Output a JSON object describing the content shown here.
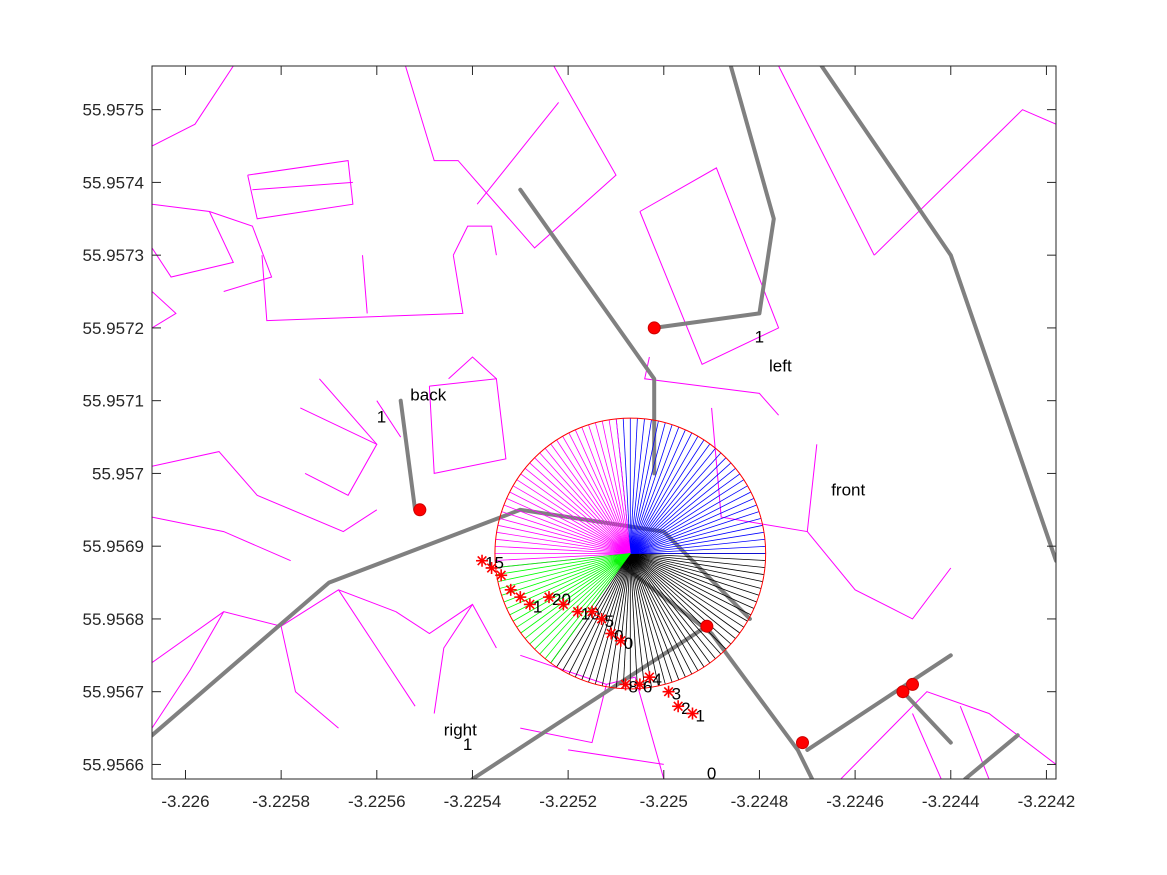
{
  "chart_data": {
    "type": "scatter",
    "title": "",
    "xlabel": "",
    "ylabel": "",
    "xlim": [
      -3.22607,
      -3.22418
    ],
    "ylim": [
      55.95658,
      55.95756
    ],
    "xticks": [
      -3.226,
      -3.2258,
      -3.2256,
      -3.2254,
      -3.2252,
      -3.225,
      -3.2248,
      -3.2246,
      -3.2244,
      -3.2242
    ],
    "xtick_labels": [
      "-3.226",
      "-3.2258",
      "-3.2256",
      "-3.2254",
      "-3.2252",
      "-3.225",
      "-3.2248",
      "-3.2246",
      "-3.2244",
      "-3.2242"
    ],
    "yticks": [
      55.9566,
      55.9567,
      55.9568,
      55.9569,
      55.957,
      55.9571,
      55.9572,
      55.9573,
      55.9574,
      55.9575
    ],
    "ytick_labels": [
      "55.9566",
      "55.9567",
      "55.9568",
      "55.9569",
      "55.957",
      "55.9571",
      "55.9572",
      "55.9573",
      "55.9574",
      "55.9575"
    ],
    "grid": false,
    "center": [
      -3.22507,
      55.95689
    ],
    "radius": 0.000283,
    "ray_count": 120,
    "sectors": [
      {
        "name": "front",
        "color": "#000000",
        "from_deg": -126,
        "to_deg": 0
      },
      {
        "name": "left",
        "color": "#0000ff",
        "from_deg": 0,
        "to_deg": 96
      },
      {
        "name": "back",
        "color": "#ff00ff",
        "from_deg": 96,
        "to_deg": 186
      },
      {
        "name": "right",
        "color": "#00ff00",
        "from_deg": 186,
        "to_deg": 234
      }
    ],
    "colors": {
      "circle": "#ff0000",
      "roads": "#808080",
      "buildings": "#ff00ff",
      "markers": "#ff0000"
    },
    "annotations": [
      {
        "text": "front",
        "x": -3.22465,
        "y": 55.95697
      },
      {
        "text": "left",
        "x": -3.22478,
        "y": 55.95714
      },
      {
        "text": "1",
        "x": -3.22481,
        "y": 55.95718
      },
      {
        "text": "back",
        "x": -3.22553,
        "y": 55.9571
      },
      {
        "text": "1",
        "x": -3.2256,
        "y": 55.95707
      },
      {
        "text": "right",
        "x": -3.22546,
        "y": 55.95664
      },
      {
        "text": "1",
        "x": -3.22542,
        "y": 55.95662
      },
      {
        "text": "0",
        "x": -3.22491,
        "y": 55.95658
      }
    ],
    "road_nodes": [
      {
        "x": -3.22502,
        "y": 55.9572
      },
      {
        "x": -3.22551,
        "y": 55.95695
      },
      {
        "x": -3.22491,
        "y": 55.95679
      },
      {
        "x": -3.22471,
        "y": 55.95663
      },
      {
        "x": -3.2245,
        "y": 55.9567
      },
      {
        "x": -3.22448,
        "y": 55.95671
      }
    ],
    "samples_a": [
      {
        "x": -3.22538,
        "y": 55.95688,
        "label": "15"
      },
      {
        "x": -3.22536,
        "y": 55.95687,
        "label": ""
      },
      {
        "x": -3.22534,
        "y": 55.95686,
        "label": ""
      },
      {
        "x": -3.22532,
        "y": 55.95684,
        "label": ""
      },
      {
        "x": -3.2253,
        "y": 55.95683,
        "label": ""
      },
      {
        "x": -3.22528,
        "y": 55.95682,
        "label": "1"
      }
    ],
    "samples_b": [
      {
        "x": -3.22524,
        "y": 55.95683,
        "label": "20"
      },
      {
        "x": -3.22521,
        "y": 55.95682,
        "label": ""
      },
      {
        "x": -3.22518,
        "y": 55.95681,
        "label": "10"
      },
      {
        "x": -3.22515,
        "y": 55.95681,
        "label": ""
      },
      {
        "x": -3.22513,
        "y": 55.9568,
        "label": "5"
      },
      {
        "x": -3.22511,
        "y": 55.95678,
        "label": "0"
      },
      {
        "x": -3.22509,
        "y": 55.95677,
        "label": "0"
      }
    ],
    "samples_c": [
      {
        "x": -3.22508,
        "y": 55.95671,
        "label": "8"
      },
      {
        "x": -3.22505,
        "y": 55.95671,
        "label": "6"
      },
      {
        "x": -3.22503,
        "y": 55.95672,
        "label": "4"
      },
      {
        "x": -3.22499,
        "y": 55.9567,
        "label": "3"
      },
      {
        "x": -3.22497,
        "y": 55.95668,
        "label": "2"
      },
      {
        "x": -3.22494,
        "y": 55.95667,
        "label": "1"
      }
    ],
    "roads": [
      [
        [
          -3.22607,
          55.95664
        ],
        [
          -3.2257,
          55.95685
        ],
        [
          -3.2253,
          55.95695
        ],
        [
          -3.225,
          55.95692
        ],
        [
          -3.22482,
          55.9568
        ]
      ],
      [
        [
          -3.22555,
          55.9571
        ],
        [
          -3.22552,
          55.95695
        ]
      ],
      [
        [
          -3.2253,
          55.95739
        ],
        [
          -3.22502,
          55.95713
        ],
        [
          -3.22502,
          55.957
        ]
      ],
      [
        [
          -3.22502,
          55.9572
        ],
        [
          -3.2248,
          55.95722
        ],
        [
          -3.22477,
          55.95735
        ],
        [
          -3.22486,
          55.95756
        ]
      ],
      [
        [
          -3.22467,
          55.95756
        ],
        [
          -3.2244,
          55.9573
        ],
        [
          -3.22418,
          55.95688
        ]
      ],
      [
        [
          -3.2251,
          55.95688
        ],
        [
          -3.2249,
          55.95678
        ],
        [
          -3.22472,
          55.95662
        ],
        [
          -3.22469,
          55.95658
        ]
      ],
      [
        [
          -3.2247,
          55.95662
        ],
        [
          -3.2244,
          55.95675
        ]
      ],
      [
        [
          -3.2245,
          55.9567
        ],
        [
          -3.2244,
          55.95663
        ]
      ],
      [
        [
          -3.2254,
          55.95658
        ],
        [
          -3.22491,
          55.95679
        ]
      ],
      [
        [
          -3.22426,
          55.95664
        ],
        [
          -3.22437,
          55.95658
        ]
      ]
    ],
    "buildings": [
      [
        [
          -3.22607,
          55.95745
        ],
        [
          -3.22598,
          55.95748
        ],
        [
          -3.2259,
          55.95756
        ]
      ],
      [
        [
          -3.22587,
          55.95741
        ],
        [
          -3.22566,
          55.95743
        ],
        [
          -3.22565,
          55.95737
        ],
        [
          -3.22585,
          55.95735
        ],
        [
          -3.22587,
          55.95741
        ]
      ],
      [
        [
          -3.22586,
          55.95739
        ],
        [
          -3.22565,
          55.9574
        ]
      ],
      [
        [
          -3.22607,
          55.95737
        ],
        [
          -3.22595,
          55.95736
        ],
        [
          -3.2259,
          55.95729
        ],
        [
          -3.22603,
          55.95727
        ],
        [
          -3.22607,
          55.95731
        ]
      ],
      [
        [
          -3.22595,
          55.95736
        ],
        [
          -3.22586,
          55.95734
        ],
        [
          -3.22582,
          55.95727
        ],
        [
          -3.22592,
          55.95725
        ]
      ],
      [
        [
          -3.22607,
          55.95725
        ],
        [
          -3.22602,
          55.95722
        ],
        [
          -3.22607,
          55.9572
        ]
      ],
      [
        [
          -3.22554,
          55.95756
        ],
        [
          -3.22548,
          55.95743
        ],
        [
          -3.22543,
          55.95743
        ],
        [
          -3.22527,
          55.95731
        ],
        [
          -3.2251,
          55.95741
        ],
        [
          -3.22523,
          55.95756
        ]
      ],
      [
        [
          -3.22539,
          55.95737
        ],
        [
          -3.22522,
          55.95751
        ]
      ],
      [
        [
          -3.22584,
          55.9573
        ],
        [
          -3.22583,
          55.95721
        ],
        [
          -3.22542,
          55.95722
        ],
        [
          -3.22544,
          55.9573
        ]
      ],
      [
        [
          -3.22563,
          55.9573
        ],
        [
          -3.22562,
          55.95722
        ]
      ],
      [
        [
          -3.22544,
          55.9573
        ],
        [
          -3.22541,
          55.95734
        ],
        [
          -3.22536,
          55.95734
        ],
        [
          -3.22535,
          55.9573
        ]
      ],
      [
        [
          -3.22576,
          55.95709
        ],
        [
          -3.2256,
          55.95704
        ],
        [
          -3.22566,
          55.95697
        ],
        [
          -3.22575,
          55.957
        ]
      ],
      [
        [
          -3.22572,
          55.95713
        ],
        [
          -3.2256,
          55.95704
        ]
      ],
      [
        [
          -3.22607,
          55.95701
        ],
        [
          -3.22593,
          55.95703
        ],
        [
          -3.22585,
          55.95697
        ],
        [
          -3.22567,
          55.95692
        ],
        [
          -3.2256,
          55.95695
        ]
      ],
      [
        [
          -3.22607,
          55.95694
        ],
        [
          -3.22592,
          55.95692
        ],
        [
          -3.22578,
          55.95688
        ]
      ],
      [
        [
          -3.2256,
          55.9571
        ],
        [
          -3.22555,
          55.95705
        ]
      ],
      [
        [
          -3.22503,
          55.95716
        ],
        [
          -3.22504,
          55.95713
        ],
        [
          -3.2248,
          55.95711
        ],
        [
          -3.22476,
          55.95708
        ]
      ],
      [
        [
          -3.22505,
          55.95736
        ],
        [
          -3.22489,
          55.95742
        ],
        [
          -3.22476,
          55.9572
        ],
        [
          -3.22492,
          55.95715
        ],
        [
          -3.22505,
          55.95736
        ]
      ],
      [
        [
          -3.22456,
          55.9573
        ],
        [
          -3.22425,
          55.9575
        ],
        [
          -3.22418,
          55.95748
        ]
      ],
      [
        [
          -3.22456,
          55.9573
        ],
        [
          -3.22476,
          55.95756
        ]
      ],
      [
        [
          -3.22549,
          55.95712
        ],
        [
          -3.22535,
          55.95713
        ],
        [
          -3.22533,
          55.95702
        ],
        [
          -3.22548,
          55.957
        ],
        [
          -3.22549,
          55.95712
        ]
      ],
      [
        [
          -3.22545,
          55.95713
        ],
        [
          -3.2254,
          55.95716
        ],
        [
          -3.22535,
          55.95713
        ]
      ],
      [
        [
          -3.2249,
          55.95709
        ],
        [
          -3.22488,
          55.95694
        ],
        [
          -3.2247,
          55.95692
        ],
        [
          -3.22468,
          55.95704
        ]
      ],
      [
        [
          -3.2247,
          55.95692
        ],
        [
          -3.2246,
          55.95684
        ],
        [
          -3.22448,
          55.9568
        ],
        [
          -3.2244,
          55.95687
        ]
      ],
      [
        [
          -3.22607,
          55.95674
        ],
        [
          -3.22592,
          55.95681
        ],
        [
          -3.2258,
          55.95679
        ],
        [
          -3.22568,
          55.95684
        ],
        [
          -3.22556,
          55.95681
        ]
      ],
      [
        [
          -3.22592,
          55.95681
        ],
        [
          -3.22599,
          55.95673
        ],
        [
          -3.22607,
          55.95665
        ]
      ],
      [
        [
          -3.2258,
          55.95679
        ],
        [
          -3.22577,
          55.9567
        ],
        [
          -3.22568,
          55.95665
        ]
      ],
      [
        [
          -3.22568,
          55.95684
        ],
        [
          -3.2256,
          55.95676
        ],
        [
          -3.22552,
          55.95668
        ]
      ],
      [
        [
          -3.22556,
          55.95681
        ],
        [
          -3.22549,
          55.95678
        ],
        [
          -3.2254,
          55.95682
        ],
        [
          -3.22535,
          55.95676
        ]
      ],
      [
        [
          -3.2254,
          55.95682
        ],
        [
          -3.22546,
          55.95676
        ],
        [
          -3.22548,
          55.95667
        ]
      ],
      [
        [
          -3.2253,
          55.95675
        ],
        [
          -3.22512,
          55.95671
        ],
        [
          -3.22506,
          55.95672
        ],
        [
          -3.225,
          55.95658
        ]
      ],
      [
        [
          -3.2253,
          55.95665
        ],
        [
          -3.22515,
          55.95663
        ],
        [
          -3.22512,
          55.95671
        ]
      ],
      [
        [
          -3.2252,
          55.95662
        ],
        [
          -3.225,
          55.9566
        ]
      ],
      [
        [
          -3.22463,
          55.95658
        ],
        [
          -3.22445,
          55.9567
        ],
        [
          -3.22432,
          55.95667
        ],
        [
          -3.22418,
          55.9566
        ]
      ],
      [
        [
          -3.22438,
          55.95668
        ],
        [
          -3.22432,
          55.95658
        ]
      ],
      [
        [
          -3.22448,
          55.95667
        ],
        [
          -3.22442,
          55.95658
        ]
      ]
    ]
  }
}
